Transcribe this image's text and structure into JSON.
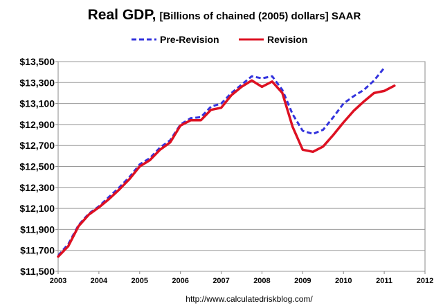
{
  "chart_data": {
    "type": "line",
    "title": "Real GDP,",
    "subtitle": "[Billions of chained (2005) dollars] SAAR",
    "xlabel": "",
    "ylabel": "",
    "xlim": [
      2003,
      2012
    ],
    "ylim": [
      11500,
      13500
    ],
    "y_tick_labels": [
      "$11,500",
      "$11,700",
      "$11,900",
      "$12,100",
      "$12,300",
      "$12,500",
      "$12,700",
      "$12,900",
      "$13,100",
      "$13,300",
      "$13,500"
    ],
    "x_tick_labels": [
      "2003",
      "2004",
      "2005",
      "2006",
      "2007",
      "2008",
      "2009",
      "2010",
      "2011",
      "2012"
    ],
    "grid": true,
    "legend_position": "top",
    "source": "http://www.calculatedriskblog.com/",
    "series": [
      {
        "name": "Pre-Revision",
        "color": "#3333dd",
        "style": "dashed",
        "x": [
          2003.0,
          2003.25,
          2003.5,
          2003.75,
          2004.0,
          2004.25,
          2004.5,
          2004.75,
          2005.0,
          2005.25,
          2005.5,
          2005.75,
          2006.0,
          2006.25,
          2006.5,
          2006.75,
          2007.0,
          2007.25,
          2007.5,
          2007.75,
          2008.0,
          2008.25,
          2008.5,
          2008.75,
          2009.0,
          2009.25,
          2009.5,
          2009.75,
          2010.0,
          2010.25,
          2010.5,
          2010.75,
          2011.0
        ],
        "y": [
          11650,
          11760,
          11940,
          12050,
          12120,
          12210,
          12300,
          12400,
          12520,
          12580,
          12680,
          12750,
          12900,
          12960,
          12970,
          13070,
          13100,
          13200,
          13280,
          13360,
          13340,
          13360,
          13230,
          13000,
          12840,
          12810,
          12850,
          12970,
          13100,
          13170,
          13230,
          13320,
          13440
        ]
      },
      {
        "name": "Revision",
        "color": "#dd1122",
        "style": "solid",
        "x": [
          2003.0,
          2003.25,
          2003.5,
          2003.75,
          2004.0,
          2004.25,
          2004.5,
          2004.75,
          2005.0,
          2005.25,
          2005.5,
          2005.75,
          2006.0,
          2006.25,
          2006.5,
          2006.75,
          2007.0,
          2007.25,
          2007.5,
          2007.75,
          2008.0,
          2008.25,
          2008.5,
          2008.75,
          2009.0,
          2009.25,
          2009.5,
          2009.75,
          2010.0,
          2010.25,
          2010.5,
          2010.75,
          2011.0,
          2011.25
        ],
        "y": [
          11640,
          11740,
          11930,
          12040,
          12110,
          12190,
          12280,
          12380,
          12500,
          12560,
          12660,
          12730,
          12890,
          12940,
          12940,
          13040,
          13060,
          13180,
          13260,
          13320,
          13260,
          13310,
          13200,
          12880,
          12660,
          12640,
          12690,
          12800,
          12920,
          13030,
          13120,
          13200,
          13220,
          13270
        ]
      }
    ]
  }
}
